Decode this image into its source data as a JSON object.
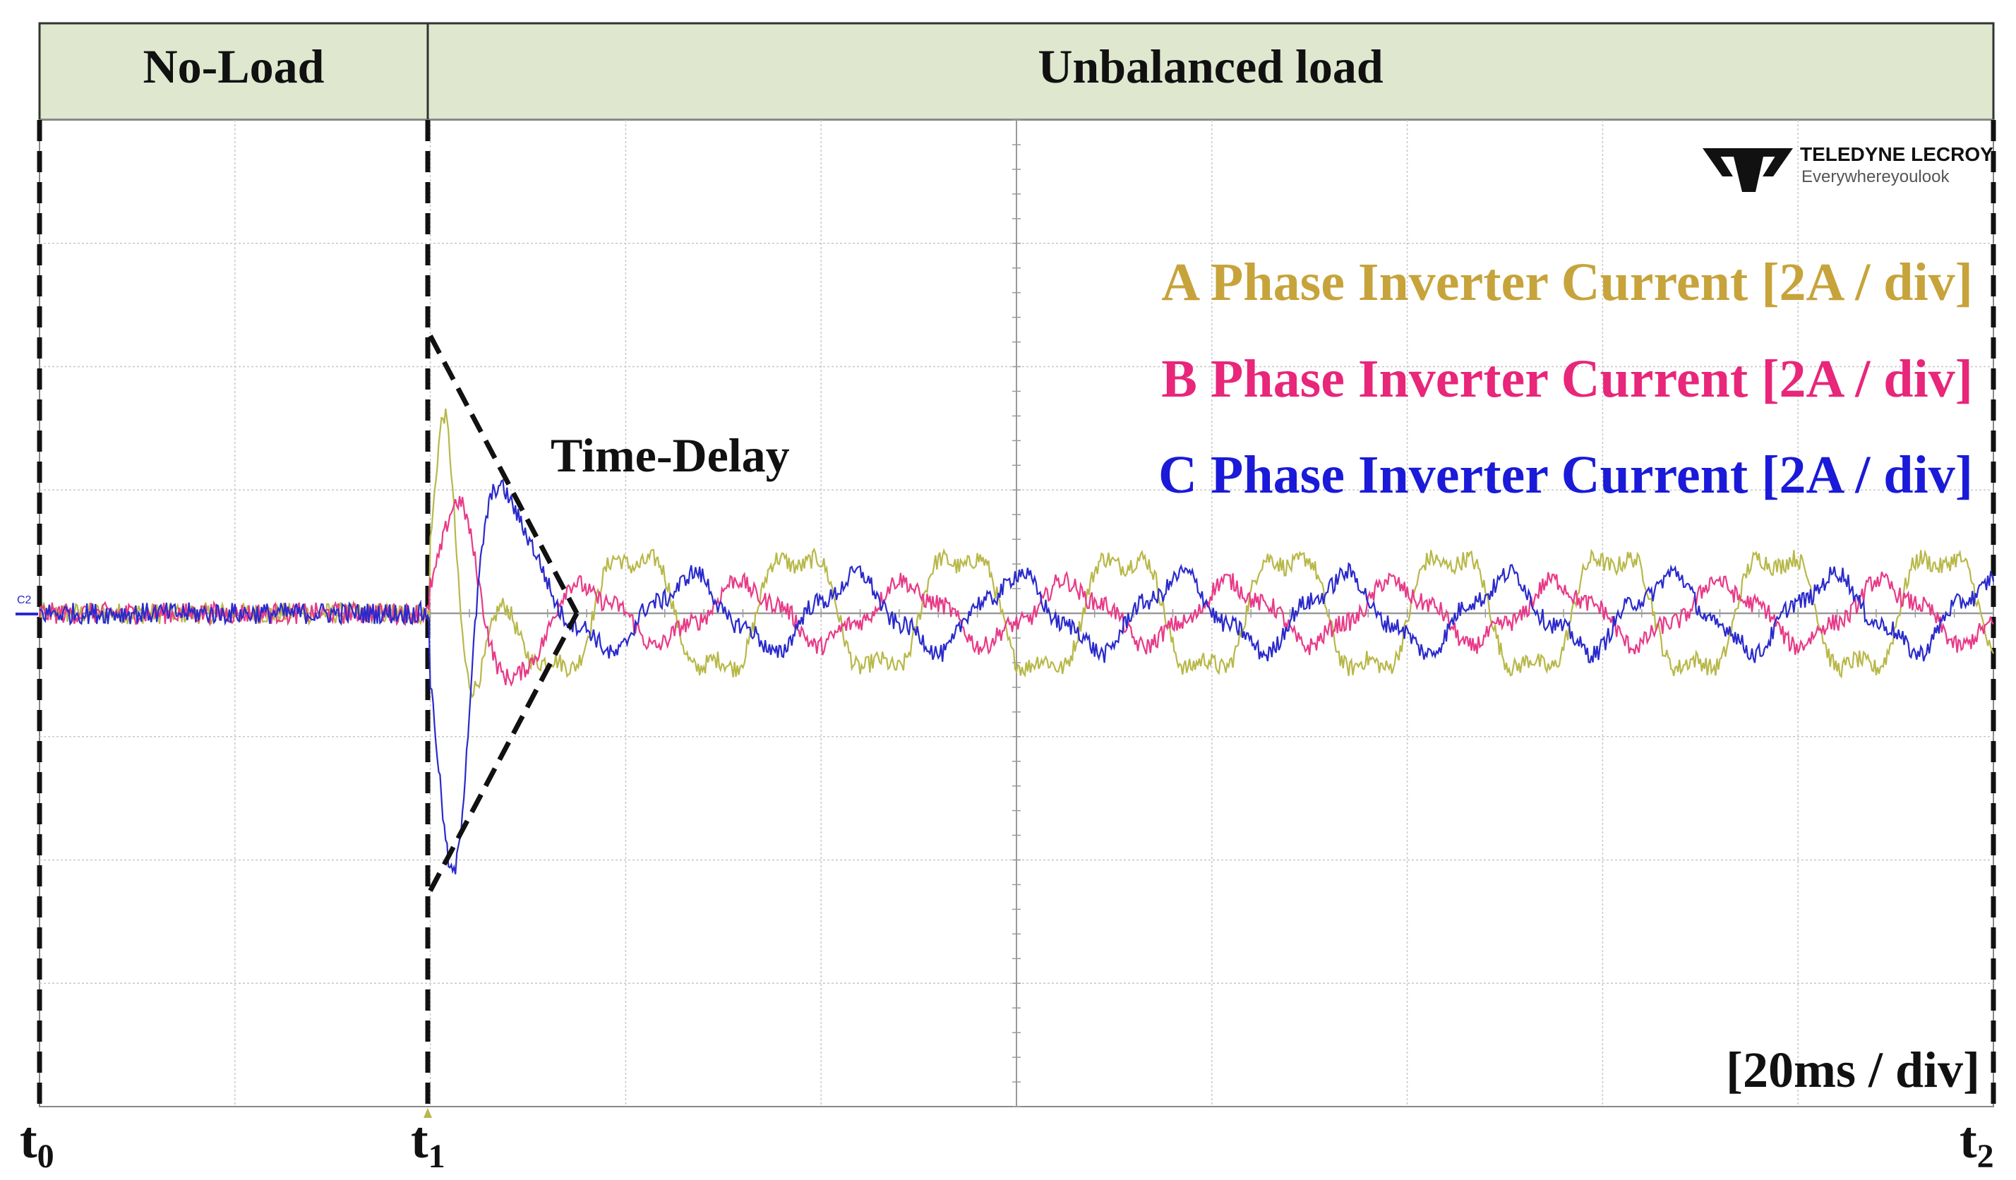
{
  "chart_data": {
    "type": "line",
    "title": "",
    "xlabel": "",
    "ylabel": "",
    "time_scale": "[20ms / div]",
    "grid": true,
    "x_divisions": 10,
    "y_divisions": 8,
    "x_range_ms": [
      0,
      200
    ],
    "y_range_A": [
      -8,
      8
    ],
    "x_axis_marks": [
      {
        "label": "t",
        "sub": "0",
        "time_ms": 0
      },
      {
        "label": "t",
        "sub": "1",
        "time_ms": 40
      },
      {
        "label": "t",
        "sub": "2",
        "time_ms": 200
      }
    ],
    "regions": [
      {
        "label": "No-Load",
        "start_ms": 0,
        "end_ms": 40
      },
      {
        "label": "Unbalanced load",
        "start_ms": 40,
        "end_ms": 200
      }
    ],
    "annotation": {
      "text": "Time-Delay",
      "envelope_ms": [
        40,
        55
      ],
      "envelope_amplitude_A": [
        4.5,
        0
      ]
    },
    "channel_marker": "C2",
    "logo": {
      "brand": "TELEDYNE LECROY",
      "tagline": "Everywhereyoulook"
    },
    "series": [
      {
        "name": "A Phase Inverter Current [2A / div]",
        "color": "#c7a33b",
        "trace_color": "#b8b84a",
        "amplitude_A": 1.0,
        "phase_deg": 0,
        "transient": {
          "peak_A": 3.5,
          "time_ms": 41.5
        }
      },
      {
        "name": "B Phase Inverter Current [2A / div]",
        "color": "#e8267a",
        "trace_color": "#e83a88",
        "amplitude_A": 0.45,
        "phase_deg": 120,
        "transient": {
          "peak_A": 1.9,
          "time_ms": 43
        }
      },
      {
        "name": "C Phase Inverter Current [2A / div]",
        "color": "#1a1ad8",
        "trace_color": "#2a2acc",
        "amplitude_A": 0.55,
        "phase_deg": 240,
        "transient": {
          "peak_A": -4.4,
          "time_ms": 42.4
        }
      }
    ],
    "period_ms": 16.7
  }
}
